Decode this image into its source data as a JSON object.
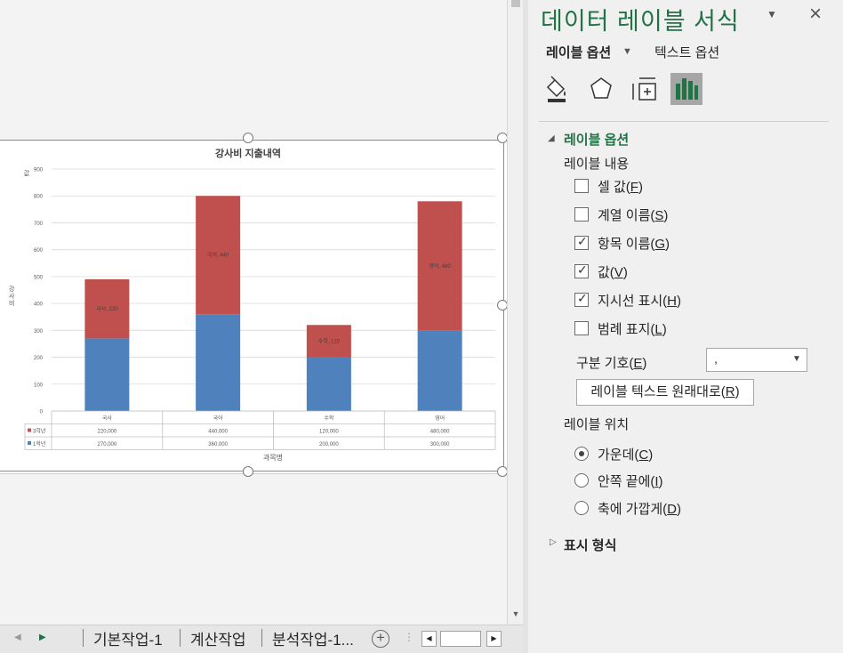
{
  "chart_data": {
    "type": "bar",
    "stacked": true,
    "title": "강사비 지출내역",
    "xlabel": "과목명",
    "ylabel": "강사비",
    "ylabel_top": "값",
    "categories": [
      "국사",
      "국어",
      "수학",
      "영어"
    ],
    "ylim": [
      0,
      900
    ],
    "yticks": [
      "0",
      "100",
      "200",
      "300",
      "400",
      "500",
      "600",
      "700",
      "800",
      "900"
    ],
    "series": [
      {
        "name": "1학년",
        "values": [
          270,
          360,
          200,
          300
        ],
        "table_values": [
          "270,000",
          "360,000",
          "200,000",
          "300,000"
        ],
        "color": "#4f81bd"
      },
      {
        "name": "3학년",
        "values": [
          220,
          440,
          120,
          480
        ],
        "table_values": [
          "220,000",
          "440,000",
          "120,000",
          "480,000"
        ],
        "color": "#c0504d"
      }
    ],
    "data_labels": [
      "국사, 220",
      "국어, 440",
      "수학, 120",
      "영어, 480"
    ],
    "grid": true,
    "data_table": true
  },
  "sheet_tabs": {
    "tabs": [
      {
        "label": "기본작업-1"
      },
      {
        "label": "계산작업"
      },
      {
        "label": "분석작업-1..."
      }
    ],
    "add_icon": "plus-circle-icon"
  },
  "pane": {
    "title": "데이터 레이블 서식",
    "tabs": {
      "label_options": "레이블 옵션",
      "text_options": "텍스트 옵션"
    },
    "icons": [
      "fill-bucket-icon",
      "pentagon-icon",
      "size-properties-icon",
      "bar-chart-icon"
    ],
    "section_label_options": "레이블 옵션",
    "label_contains": "레이블 내용",
    "checkboxes": [
      {
        "label": "셀 값",
        "key": "F",
        "checked": false
      },
      {
        "label": "계열 이름",
        "key": "S",
        "checked": false
      },
      {
        "label": "항목 이름",
        "key": "G",
        "checked": true
      },
      {
        "label": "값",
        "key": "V",
        "checked": true
      },
      {
        "label": "지시선 표시",
        "key": "H",
        "checked": true
      },
      {
        "label": "범례 표지",
        "key": "L",
        "checked": false
      }
    ],
    "separator": {
      "label": "구분 기호",
      "key": "E",
      "value": ","
    },
    "reset_button": {
      "label": "레이블 텍스트 원래대로",
      "key": "R"
    },
    "label_position": "레이블 위치",
    "radios": [
      {
        "label": "가운데",
        "key": "C",
        "selected": true
      },
      {
        "label": "안쪽 끝에",
        "key": "I",
        "selected": false
      },
      {
        "label": "축에 가깝게",
        "key": "D",
        "selected": false
      }
    ],
    "section_number": "표시 형식",
    "accent_color": "#217346"
  }
}
